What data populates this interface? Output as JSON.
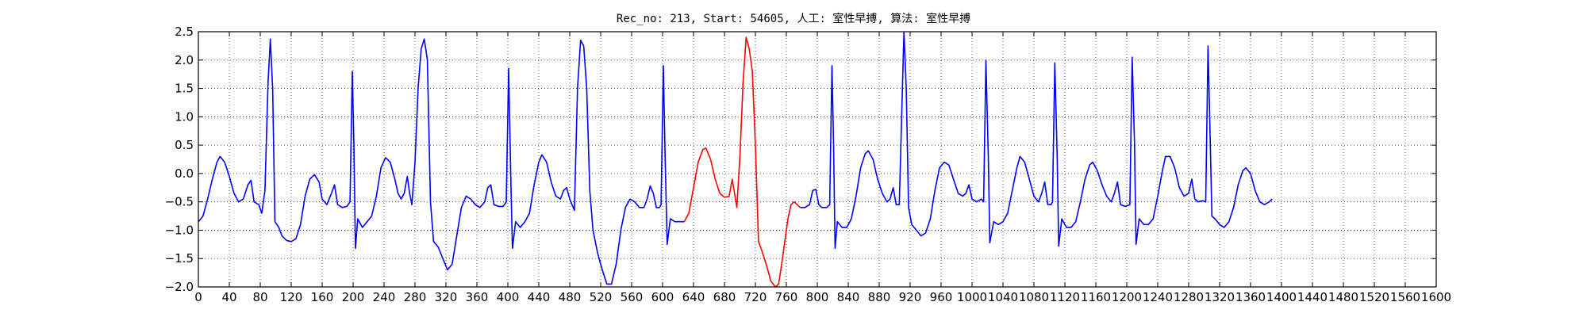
{
  "chart_data": {
    "type": "line",
    "title": "Rec_no: 213, Start: 54605, 人工: 室性早搏, 算法: 室性早搏",
    "xlabel": "",
    "ylabel": "",
    "xlim": [
      0,
      1600
    ],
    "ylim": [
      -2.0,
      2.5
    ],
    "grid": true,
    "y_ticks": [
      -2.0,
      -1.5,
      -1.0,
      -0.5,
      0.0,
      0.5,
      1.0,
      1.5,
      2.0,
      2.5
    ],
    "y_tick_labels": [
      "−2.0",
      "−1.5",
      "−1.0",
      "−0.5",
      "0.0",
      "0.5",
      "1.0",
      "1.5",
      "2.0",
      "2.5"
    ],
    "x_ticks": [
      0,
      40,
      80,
      120,
      160,
      200,
      240,
      280,
      320,
      360,
      400,
      440,
      480,
      520,
      560,
      600,
      640,
      680,
      720,
      760,
      800,
      840,
      880,
      920,
      960,
      1000,
      1040,
      1080,
      1120,
      1160,
      1200,
      1240,
      1280,
      1320,
      1360,
      1400,
      1440,
      1480,
      1520,
      1560,
      1600
    ],
    "x_tick_labels": [
      "0",
      "40",
      "80",
      "120",
      "160",
      "200",
      "240",
      "280",
      "320",
      "360",
      "400",
      "440",
      "480",
      "520",
      "560",
      "600",
      "640",
      "680",
      "720",
      "760",
      "800",
      "840",
      "880",
      "920",
      "960",
      "1000",
      "1040",
      "1080",
      "1120",
      "1160",
      "1200",
      "1240",
      "1280",
      "1320",
      "1360",
      "1400",
      "1440",
      "1480",
      "1520",
      "1560",
      "1600"
    ],
    "series": [
      {
        "color": "#0000ff",
        "points": [
          [
            0,
            -0.85
          ],
          [
            6,
            -0.75
          ],
          [
            12,
            -0.45
          ],
          [
            18,
            -0.1
          ],
          [
            24,
            0.2
          ],
          [
            28,
            0.3
          ],
          [
            34,
            0.2
          ],
          [
            40,
            -0.05
          ],
          [
            46,
            -0.35
          ],
          [
            52,
            -0.5
          ],
          [
            58,
            -0.45
          ],
          [
            64,
            -0.2
          ],
          [
            68,
            -0.12
          ],
          [
            72,
            -0.5
          ],
          [
            78,
            -0.55
          ],
          [
            82,
            -0.7
          ],
          [
            86,
            -0.3
          ],
          [
            90,
            1.6
          ],
          [
            93,
            2.37
          ],
          [
            96,
            1.5
          ],
          [
            99,
            -0.85
          ],
          [
            104,
            -0.95
          ],
          [
            108,
            -1.1
          ],
          [
            114,
            -1.18
          ],
          [
            120,
            -1.2
          ],
          [
            126,
            -1.15
          ],
          [
            132,
            -0.9
          ],
          [
            138,
            -0.4
          ],
          [
            144,
            -0.1
          ],
          [
            150,
            -0.02
          ],
          [
            156,
            -0.15
          ],
          [
            160,
            -0.45
          ],
          [
            166,
            -0.55
          ],
          [
            172,
            -0.35
          ],
          [
            176,
            -0.2
          ],
          [
            180,
            -0.55
          ],
          [
            186,
            -0.6
          ],
          [
            192,
            -0.58
          ],
          [
            196,
            -0.5
          ],
          [
            199,
            1.8
          ],
          [
            201,
            0.5
          ],
          [
            203,
            -1.32
          ],
          [
            206,
            -0.8
          ],
          [
            212,
            -0.95
          ],
          [
            218,
            -0.85
          ],
          [
            224,
            -0.75
          ],
          [
            230,
            -0.4
          ],
          [
            236,
            0.1
          ],
          [
            242,
            0.28
          ],
          [
            248,
            0.2
          ],
          [
            254,
            -0.1
          ],
          [
            258,
            -0.35
          ],
          [
            262,
            -0.45
          ],
          [
            266,
            -0.35
          ],
          [
            270,
            -0.05
          ],
          [
            273,
            -0.35
          ],
          [
            276,
            -0.55
          ],
          [
            280,
            0.2
          ],
          [
            284,
            1.5
          ],
          [
            288,
            2.2
          ],
          [
            292,
            2.37
          ],
          [
            296,
            2.0
          ],
          [
            300,
            -0.5
          ],
          [
            304,
            -1.2
          ],
          [
            310,
            -1.3
          ],
          [
            316,
            -1.5
          ],
          [
            322,
            -1.7
          ],
          [
            328,
            -1.6
          ],
          [
            334,
            -1.1
          ],
          [
            340,
            -0.6
          ],
          [
            346,
            -0.4
          ],
          [
            352,
            -0.45
          ],
          [
            358,
            -0.55
          ],
          [
            364,
            -0.6
          ],
          [
            370,
            -0.5
          ],
          [
            374,
            -0.25
          ],
          [
            378,
            -0.2
          ],
          [
            382,
            -0.55
          ],
          [
            388,
            -0.58
          ],
          [
            394,
            -0.58
          ],
          [
            398,
            -0.5
          ],
          [
            401,
            1.85
          ],
          [
            404,
            -0.2
          ],
          [
            406,
            -1.32
          ],
          [
            410,
            -0.85
          ],
          [
            416,
            -0.95
          ],
          [
            422,
            -0.85
          ],
          [
            428,
            -0.7
          ],
          [
            434,
            -0.2
          ],
          [
            440,
            0.2
          ],
          [
            444,
            0.33
          ],
          [
            450,
            0.2
          ],
          [
            456,
            -0.15
          ],
          [
            462,
            -0.4
          ],
          [
            468,
            -0.45
          ],
          [
            472,
            -0.3
          ],
          [
            476,
            -0.25
          ],
          [
            480,
            -0.45
          ],
          [
            486,
            -0.65
          ],
          [
            490,
            1.5
          ],
          [
            494,
            2.35
          ],
          [
            498,
            2.25
          ],
          [
            502,
            1.5
          ],
          [
            506,
            -0.3
          ],
          [
            510,
            -1.0
          ],
          [
            516,
            -1.4
          ],
          [
            522,
            -1.7
          ],
          [
            528,
            -1.95
          ],
          [
            534,
            -1.95
          ],
          [
            540,
            -1.6
          ],
          [
            546,
            -1.0
          ],
          [
            552,
            -0.6
          ],
          [
            558,
            -0.45
          ],
          [
            564,
            -0.5
          ],
          [
            570,
            -0.6
          ],
          [
            576,
            -0.6
          ],
          [
            580,
            -0.45
          ],
          [
            584,
            -0.22
          ],
          [
            588,
            -0.35
          ],
          [
            592,
            -0.6
          ],
          [
            596,
            -0.6
          ],
          [
            598,
            -0.55
          ],
          [
            601,
            1.9
          ],
          [
            603,
            0.5
          ],
          [
            606,
            -1.25
          ],
          [
            610,
            -0.8
          ],
          [
            616,
            -0.85
          ],
          [
            622,
            -0.85
          ],
          [
            628,
            -0.85
          ]
        ]
      },
      {
        "color": "#ff0000",
        "points": [
          [
            628,
            -0.85
          ],
          [
            634,
            -0.7
          ],
          [
            640,
            -0.25
          ],
          [
            646,
            0.2
          ],
          [
            652,
            0.42
          ],
          [
            656,
            0.45
          ],
          [
            662,
            0.25
          ],
          [
            668,
            -0.1
          ],
          [
            674,
            -0.35
          ],
          [
            680,
            -0.42
          ],
          [
            686,
            -0.4
          ],
          [
            690,
            -0.1
          ],
          [
            696,
            -0.6
          ],
          [
            700,
            0.3
          ],
          [
            704,
            1.6
          ],
          [
            708,
            2.4
          ],
          [
            712,
            2.2
          ],
          [
            716,
            1.8
          ],
          [
            720,
            0.5
          ],
          [
            724,
            -1.2
          ],
          [
            728,
            -1.35
          ],
          [
            734,
            -1.6
          ],
          [
            740,
            -1.9
          ],
          [
            746,
            -2.0
          ],
          [
            750,
            -1.95
          ],
          [
            754,
            -1.6
          ],
          [
            758,
            -1.2
          ],
          [
            762,
            -0.8
          ],
          [
            766,
            -0.55
          ],
          [
            770,
            -0.5
          ],
          [
            774,
            -0.55
          ],
          [
            778,
            -0.6
          ]
        ]
      },
      {
        "color": "#0000ff",
        "points": [
          [
            778,
            -0.6
          ],
          [
            784,
            -0.6
          ],
          [
            790,
            -0.55
          ],
          [
            794,
            -0.3
          ],
          [
            798,
            -0.28
          ],
          [
            802,
            -0.55
          ],
          [
            806,
            -0.6
          ],
          [
            812,
            -0.6
          ],
          [
            816,
            -0.55
          ],
          [
            819,
            1.9
          ],
          [
            821,
            0.5
          ],
          [
            823,
            -1.32
          ],
          [
            826,
            -0.85
          ],
          [
            832,
            -0.95
          ],
          [
            838,
            -0.95
          ],
          [
            844,
            -0.8
          ],
          [
            850,
            -0.4
          ],
          [
            856,
            0.1
          ],
          [
            862,
            0.35
          ],
          [
            866,
            0.4
          ],
          [
            872,
            0.25
          ],
          [
            878,
            -0.1
          ],
          [
            884,
            -0.35
          ],
          [
            890,
            -0.5
          ],
          [
            894,
            -0.45
          ],
          [
            898,
            -0.25
          ],
          [
            902,
            -0.55
          ],
          [
            906,
            -0.55
          ],
          [
            909,
            1.0
          ],
          [
            912,
            2.5
          ],
          [
            915,
            1.5
          ],
          [
            918,
            -0.6
          ],
          [
            922,
            -0.9
          ],
          [
            928,
            -1.0
          ],
          [
            934,
            -1.1
          ],
          [
            940,
            -1.05
          ],
          [
            946,
            -0.8
          ],
          [
            952,
            -0.3
          ],
          [
            958,
            0.1
          ],
          [
            964,
            0.2
          ],
          [
            970,
            0.15
          ],
          [
            976,
            -0.1
          ],
          [
            982,
            -0.35
          ],
          [
            988,
            -0.4
          ],
          [
            992,
            -0.35
          ],
          [
            996,
            -0.2
          ],
          [
            1000,
            -0.45
          ],
          [
            1006,
            -0.5
          ],
          [
            1012,
            -0.45
          ],
          [
            1015,
            -0.5
          ],
          [
            1018,
            2.0
          ],
          [
            1021,
            0.3
          ],
          [
            1023,
            -1.22
          ],
          [
            1028,
            -0.85
          ],
          [
            1034,
            -0.9
          ],
          [
            1040,
            -0.85
          ],
          [
            1046,
            -0.7
          ],
          [
            1052,
            -0.3
          ],
          [
            1058,
            0.1
          ],
          [
            1062,
            0.3
          ],
          [
            1068,
            0.2
          ],
          [
            1074,
            -0.1
          ],
          [
            1080,
            -0.4
          ],
          [
            1086,
            -0.5
          ],
          [
            1090,
            -0.35
          ],
          [
            1094,
            -0.15
          ],
          [
            1098,
            -0.55
          ],
          [
            1102,
            -0.55
          ],
          [
            1104,
            -0.5
          ],
          [
            1107,
            1.95
          ],
          [
            1110,
            0.3
          ],
          [
            1112,
            -1.28
          ],
          [
            1116,
            -0.8
          ],
          [
            1122,
            -0.95
          ],
          [
            1128,
            -0.95
          ],
          [
            1134,
            -0.85
          ],
          [
            1140,
            -0.5
          ],
          [
            1146,
            -0.1
          ],
          [
            1152,
            0.15
          ],
          [
            1156,
            0.2
          ],
          [
            1162,
            0.05
          ],
          [
            1168,
            -0.2
          ],
          [
            1174,
            -0.4
          ],
          [
            1180,
            -0.5
          ],
          [
            1184,
            -0.35
          ],
          [
            1188,
            -0.15
          ],
          [
            1192,
            -0.55
          ],
          [
            1198,
            -0.58
          ],
          [
            1204,
            -0.55
          ],
          [
            1207,
            2.05
          ],
          [
            1210,
            0.5
          ],
          [
            1212,
            -1.25
          ],
          [
            1216,
            -0.8
          ],
          [
            1222,
            -0.9
          ],
          [
            1228,
            -0.9
          ],
          [
            1234,
            -0.8
          ],
          [
            1240,
            -0.4
          ],
          [
            1246,
            0.05
          ],
          [
            1250,
            0.3
          ],
          [
            1256,
            0.3
          ],
          [
            1262,
            0.1
          ],
          [
            1268,
            -0.25
          ],
          [
            1274,
            -0.4
          ],
          [
            1280,
            -0.35
          ],
          [
            1284,
            -0.1
          ],
          [
            1288,
            -0.45
          ],
          [
            1292,
            -0.5
          ],
          [
            1298,
            -0.48
          ],
          [
            1302,
            -0.5
          ],
          [
            1305,
            2.25
          ],
          [
            1308,
            0.5
          ],
          [
            1310,
            -0.75
          ],
          [
            1314,
            -0.8
          ],
          [
            1320,
            -0.9
          ],
          [
            1326,
            -0.95
          ],
          [
            1332,
            -0.85
          ],
          [
            1338,
            -0.6
          ],
          [
            1344,
            -0.2
          ],
          [
            1350,
            0.05
          ],
          [
            1354,
            0.1
          ],
          [
            1360,
            0.0
          ],
          [
            1366,
            -0.3
          ],
          [
            1372,
            -0.5
          ],
          [
            1378,
            -0.55
          ],
          [
            1384,
            -0.5
          ],
          [
            1388,
            -0.45
          ]
        ]
      }
    ]
  }
}
